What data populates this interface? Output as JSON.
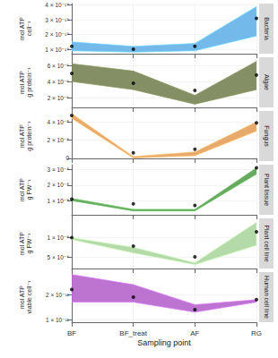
{
  "chart_data": [
    {
      "type": "scatter",
      "title": "Bacteria",
      "ylabel": "mol ATP cell⁻¹",
      "categories": [
        "BF",
        "BF_treat",
        "AF",
        "RG"
      ],
      "values": [
        1.2e-19,
        1e-19,
        1.2e-19,
        3.1e-19
      ],
      "lower": [
        9e-20,
        8e-20,
        9e-20,
        1.9e-19
      ],
      "upper": [
        1.5e-19,
        1.2e-19,
        1.4e-19,
        3.9e-19
      ],
      "color": "#5aaee8",
      "marker": "circle",
      "ylim": [
        7e-20,
        4.1e-19
      ],
      "yticks": [
        {
          "value": 1e-19,
          "label": "1 × 10⁻¹⁹"
        },
        {
          "value": 2e-19,
          "label": "2 × 10⁻¹⁹"
        },
        {
          "value": 3e-19,
          "label": "3 × 10⁻¹⁹"
        },
        {
          "value": 4e-19,
          "label": "4 × 10⁻¹⁹"
        }
      ],
      "grid": true,
      "tick_labels": "y"
    },
    {
      "type": "scatter",
      "title": "Algae",
      "ylabel": "mol ATP g protein⁻¹",
      "categories": [
        "BF",
        "BF_treat",
        "AF",
        "RG"
      ],
      "values": [
        5e-06,
        3.8e-06,
        2.9e-06,
        4.8e-06
      ],
      "lower": [
        4e-06,
        3e-06,
        1.2e-06,
        3e-06
      ],
      "upper": [
        6.2e-06,
        5.3e-06,
        2.3e-06,
        6.5e-06
      ],
      "color": "#6f7b4a",
      "marker": "circle",
      "ylim": [
        8e-07,
        7e-06
      ],
      "yticks": [
        {
          "value": 2e-06,
          "label": "2 × 10⁻⁶"
        },
        {
          "value": 4e-06,
          "label": "4 × 10⁻⁶"
        },
        {
          "value": 6e-06,
          "label": "6 × 10⁻⁶"
        }
      ],
      "grid": true,
      "tick_labels": "y"
    },
    {
      "type": "scatter",
      "title": "Fungus",
      "ylabel": "mol ATP g protein⁻¹",
      "categories": [
        "BF",
        "BF_treat",
        "AF",
        "RG"
      ],
      "values": [
        4.7e-08,
        6e-09,
        1e-08,
        3.9e-08
      ],
      "lower": [
        4.4e-08,
        5e-10,
        3e-09,
        3e-08
      ],
      "upper": [
        4.9e-08,
        2e-09,
        7e-09,
        4e-08
      ],
      "color": "#e39a52",
      "marker": "circle",
      "ylim": [
        -3e-09,
        5.2e-08
      ],
      "yticks": [
        0,
        {
          "value": 2e-08,
          "label": "2 × 10⁻⁸"
        },
        {
          "value": 4e-08,
          "label": "4 × 10⁻⁸"
        }
      ],
      "grid": true,
      "tick_labels": "y"
    },
    {
      "type": "scatter",
      "title": "Plant tissue",
      "ylabel": "mol ATP g FW⁻¹",
      "categories": [
        "BF",
        "BF_treat",
        "AF",
        "RG"
      ],
      "values": [
        1.1e-08,
        8e-09,
        7e-09,
        3.1e-08
      ],
      "lower": [
        1e-08,
        3.5e-09,
        3.5e-09,
        2.7e-08
      ],
      "upper": [
        1.15e-08,
        4.5e-09,
        4.5e-09,
        3.1e-08
      ],
      "color": "#4e9a45",
      "marker": "circle",
      "ylim": [
        1e-09,
        3.3e-08
      ],
      "yticks": [
        {
          "value": 1e-08,
          "label": "1 × 10⁻⁸"
        },
        {
          "value": 2e-08,
          "label": "2 × 10⁻⁸"
        },
        {
          "value": 3e-08,
          "label": "3 × 10⁻⁸"
        }
      ],
      "grid": true,
      "tick_labels": "y"
    },
    {
      "type": "scatter",
      "title": "Plant cell line",
      "ylabel": "mol ATP g FW⁻¹",
      "categories": [
        "BF",
        "BF_treat",
        "AF",
        "RG"
      ],
      "values": [
        1e-08,
        7.8e-09,
        5e-09,
        1.15e-08
      ],
      "lower": [
        9.5e-09,
        6e-09,
        3e-09,
        8e-09
      ],
      "upper": [
        1e-08,
        7.5e-09,
        3.5e-09,
        1.4e-08
      ],
      "color": "#a8d49a",
      "marker": "circle",
      "ylim": [
        2e-09,
        1.5e-08
      ],
      "yticks": [
        {
          "value": 5e-09,
          "label": "5 × 10⁻⁹"
        },
        {
          "value": 1e-08,
          "label": "1 × 10⁻⁸"
        }
      ],
      "grid": true,
      "tick_labels": "y"
    },
    {
      "type": "scatter",
      "title": "Human cell line",
      "ylabel": "mol ATP viable cell⁻¹",
      "xlabel": "Sampling point",
      "categories": [
        "BF",
        "BF_treat",
        "AF",
        "RG"
      ],
      "values": [
        2.2e-11,
        1.9e-11,
        1.4e-11,
        1.8e-11
      ],
      "lower": [
        1.7e-11,
        1.7e-11,
        1.3e-11,
        1.7e-11
      ],
      "upper": [
        2.8e-11,
        2.4e-11,
        1.6e-11,
        1.8e-11
      ],
      "color": "#b05cc8",
      "marker": "circle",
      "ylim": [
        9e-12,
        2.9e-11
      ],
      "yticks": [
        {
          "value": 1e-11,
          "label": "1 × 10⁻¹¹"
        },
        {
          "value": 2e-11,
          "label": "2 × 10⁻¹¹"
        }
      ],
      "grid": true
    }
  ]
}
